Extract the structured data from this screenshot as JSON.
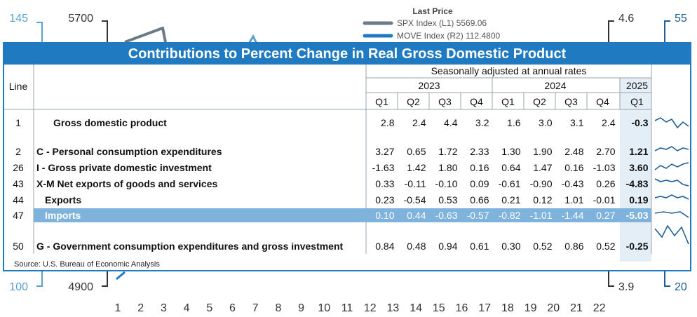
{
  "chart_data": [
    {
      "type": "line",
      "legend_title": "Last Price",
      "series": [
        {
          "name": "SPX Index (L1) 5569.06",
          "color": "#6d7b89",
          "axis": "left"
        },
        {
          "name": "MOVE Index (R2) 112.4800",
          "color": "#1f7ac2",
          "axis": "right"
        }
      ],
      "x_ticks": [
        "1",
        "2",
        "3",
        "4",
        "5",
        "6",
        "7",
        "8",
        "9",
        "10",
        "11",
        "12",
        "13",
        "14",
        "15",
        "16",
        "17",
        "18",
        "19",
        "20",
        "21",
        "22"
      ],
      "left_axis_outer_ticks": [
        "145",
        "100"
      ],
      "left_axis_inner_ticks": [
        "5700",
        "4900"
      ],
      "right_axis_inner_ticks": [
        "4.6",
        "3.9"
      ],
      "right_axis_outer_ticks": [
        "55",
        "20"
      ]
    },
    {
      "type": "table",
      "title": "Contributions to Percent Change in Real Gross Domestic Product",
      "line_header": "Line",
      "subheader": "Seasonally adjusted at annual rates",
      "years": [
        {
          "label": "2023",
          "span": 4
        },
        {
          "label": "2024",
          "span": 4
        },
        {
          "label": "2025",
          "span": 1
        }
      ],
      "quarters": [
        "Q1",
        "Q2",
        "Q3",
        "Q4",
        "Q1",
        "Q2",
        "Q3",
        "Q4",
        "Q1"
      ],
      "rows": [
        {
          "line": "1",
          "label": "Gross domestic product",
          "values": [
            "2.8",
            "2.4",
            "4.4",
            "3.2",
            "1.6",
            "3.0",
            "3.1",
            "2.4",
            "-0.3"
          ]
        },
        {
          "line": "2",
          "label": "C - Personal consumption expenditures",
          "values": [
            "3.27",
            "0.65",
            "1.72",
            "2.33",
            "1.30",
            "1.90",
            "2.48",
            "2.70",
            "1.21"
          ]
        },
        {
          "line": "26",
          "label": "I - Gross private domestic investment",
          "values": [
            "-1.63",
            "1.42",
            "1.80",
            "0.16",
            "0.64",
            "1.47",
            "0.16",
            "-1.03",
            "3.60"
          ]
        },
        {
          "line": "43",
          "label": "X-M Net exports of goods and services",
          "values": [
            "0.33",
            "-0.11",
            "-0.10",
            "0.09",
            "-0.61",
            "-0.90",
            "-0.43",
            "0.26",
            "-4.83"
          ]
        },
        {
          "line": "44",
          "label": "Exports",
          "values": [
            "0.23",
            "-0.54",
            "0.53",
            "0.66",
            "0.21",
            "0.12",
            "1.01",
            "-0.01",
            "0.19"
          ]
        },
        {
          "line": "47",
          "label": "Imports",
          "values": [
            "0.10",
            "0.44",
            "-0.63",
            "-0.57",
            "-0.82",
            "-1.01",
            "-1.44",
            "0.27",
            "-5.03"
          ]
        },
        {
          "line": "50",
          "label": "G - Government consumption expenditures and gross investment",
          "values": [
            "0.84",
            "0.48",
            "0.94",
            "0.61",
            "0.30",
            "0.52",
            "0.86",
            "0.52",
            "-0.25"
          ]
        }
      ],
      "highlighted_row": "47",
      "source": "Source: U.S. Bureau of Economic Analysis",
      "colors": {
        "accent": "#1f7ac2",
        "highlight_row": "#7fb3dc",
        "last_column": "#e4eef7"
      }
    }
  ]
}
